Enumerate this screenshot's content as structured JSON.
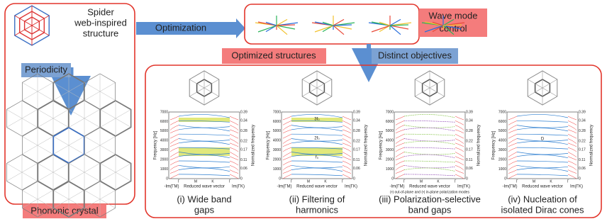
{
  "left_panel": {
    "title_lines": [
      "Spider",
      "web-inspired",
      "structure"
    ],
    "step": "Periodicity",
    "result": "Phononic crystal"
  },
  "arrow_label": "Optimization",
  "wave_box": {
    "label_lines": [
      "Wave mode",
      "control"
    ]
  },
  "optimized_label": "Optimized structures",
  "objectives_label": "Distinct objectives",
  "plot": {
    "ylabel": "Frequency [Hz]",
    "y2label": "Normalized frequency",
    "xlabel": "Reduced wave vector",
    "left_label": "-Im(ΓM)",
    "right_label": "Im(ΓK)",
    "yticks": [
      0,
      1000,
      2000,
      3000,
      4000,
      5000,
      6000,
      7000
    ],
    "y2ticks": [
      0,
      0.06,
      0.11,
      0.17,
      0.22,
      0.28,
      0.34,
      0.39
    ],
    "x_points": [
      "Γ",
      "M",
      "K",
      "Γ"
    ]
  },
  "panels": [
    {
      "caption_lines": [
        "(i) Wide band",
        "gaps"
      ]
    },
    {
      "caption_lines": [
        "(ii) Filtering of",
        "harmonics"
      ],
      "annotations": [
        "3f₀",
        "2f₀",
        "f₀"
      ]
    },
    {
      "caption_lines": [
        "(iii) Polarization-selective",
        "band gaps"
      ],
      "legend": "(•) out-of-plane and (•) in-plane polarization modes"
    },
    {
      "caption_lines": [
        "(iv) Nucleation of",
        "isolated Dirac cones"
      ],
      "annotations": [
        "D"
      ]
    }
  ]
}
